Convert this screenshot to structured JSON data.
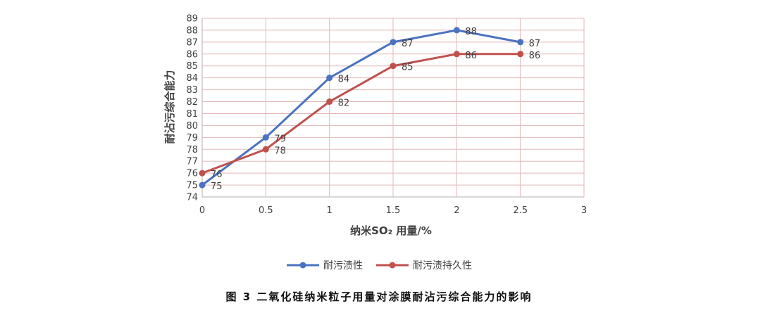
{
  "caption": "图 3  二氧化硅纳米粒子用量对涂膜耐沾污综合能力的影响",
  "chart_data": {
    "type": "line",
    "xlabel": "纳米SO₂ 用量/%",
    "ylabel": "耐沾污综合能力",
    "x": [
      0,
      0.5,
      1,
      1.5,
      2,
      2.5
    ],
    "xlim": [
      0,
      3
    ],
    "ylim": [
      74,
      89
    ],
    "x_ticks": [
      "0",
      "0.5",
      "1",
      "1.5",
      "2",
      "2.5",
      "3"
    ],
    "y_ticks": [
      "74",
      "75",
      "76",
      "77",
      "78",
      "79",
      "80",
      "81",
      "82",
      "83",
      "84",
      "85",
      "86",
      "87",
      "88",
      "89"
    ],
    "grid": true,
    "legend_position": "bottom",
    "series": [
      {
        "name": "耐污渍性",
        "color": "#4a72c0",
        "values": [
          75,
          79,
          84,
          87,
          88,
          87
        ],
        "labels": [
          "75",
          "79",
          "84",
          "87",
          "88",
          "87"
        ]
      },
      {
        "name": "耐污渍持久性",
        "color": "#c0504d",
        "values": [
          76,
          78,
          82,
          85,
          86,
          86
        ],
        "labels": [
          "76",
          "78",
          "82",
          "85",
          "86",
          "86"
        ]
      }
    ]
  }
}
